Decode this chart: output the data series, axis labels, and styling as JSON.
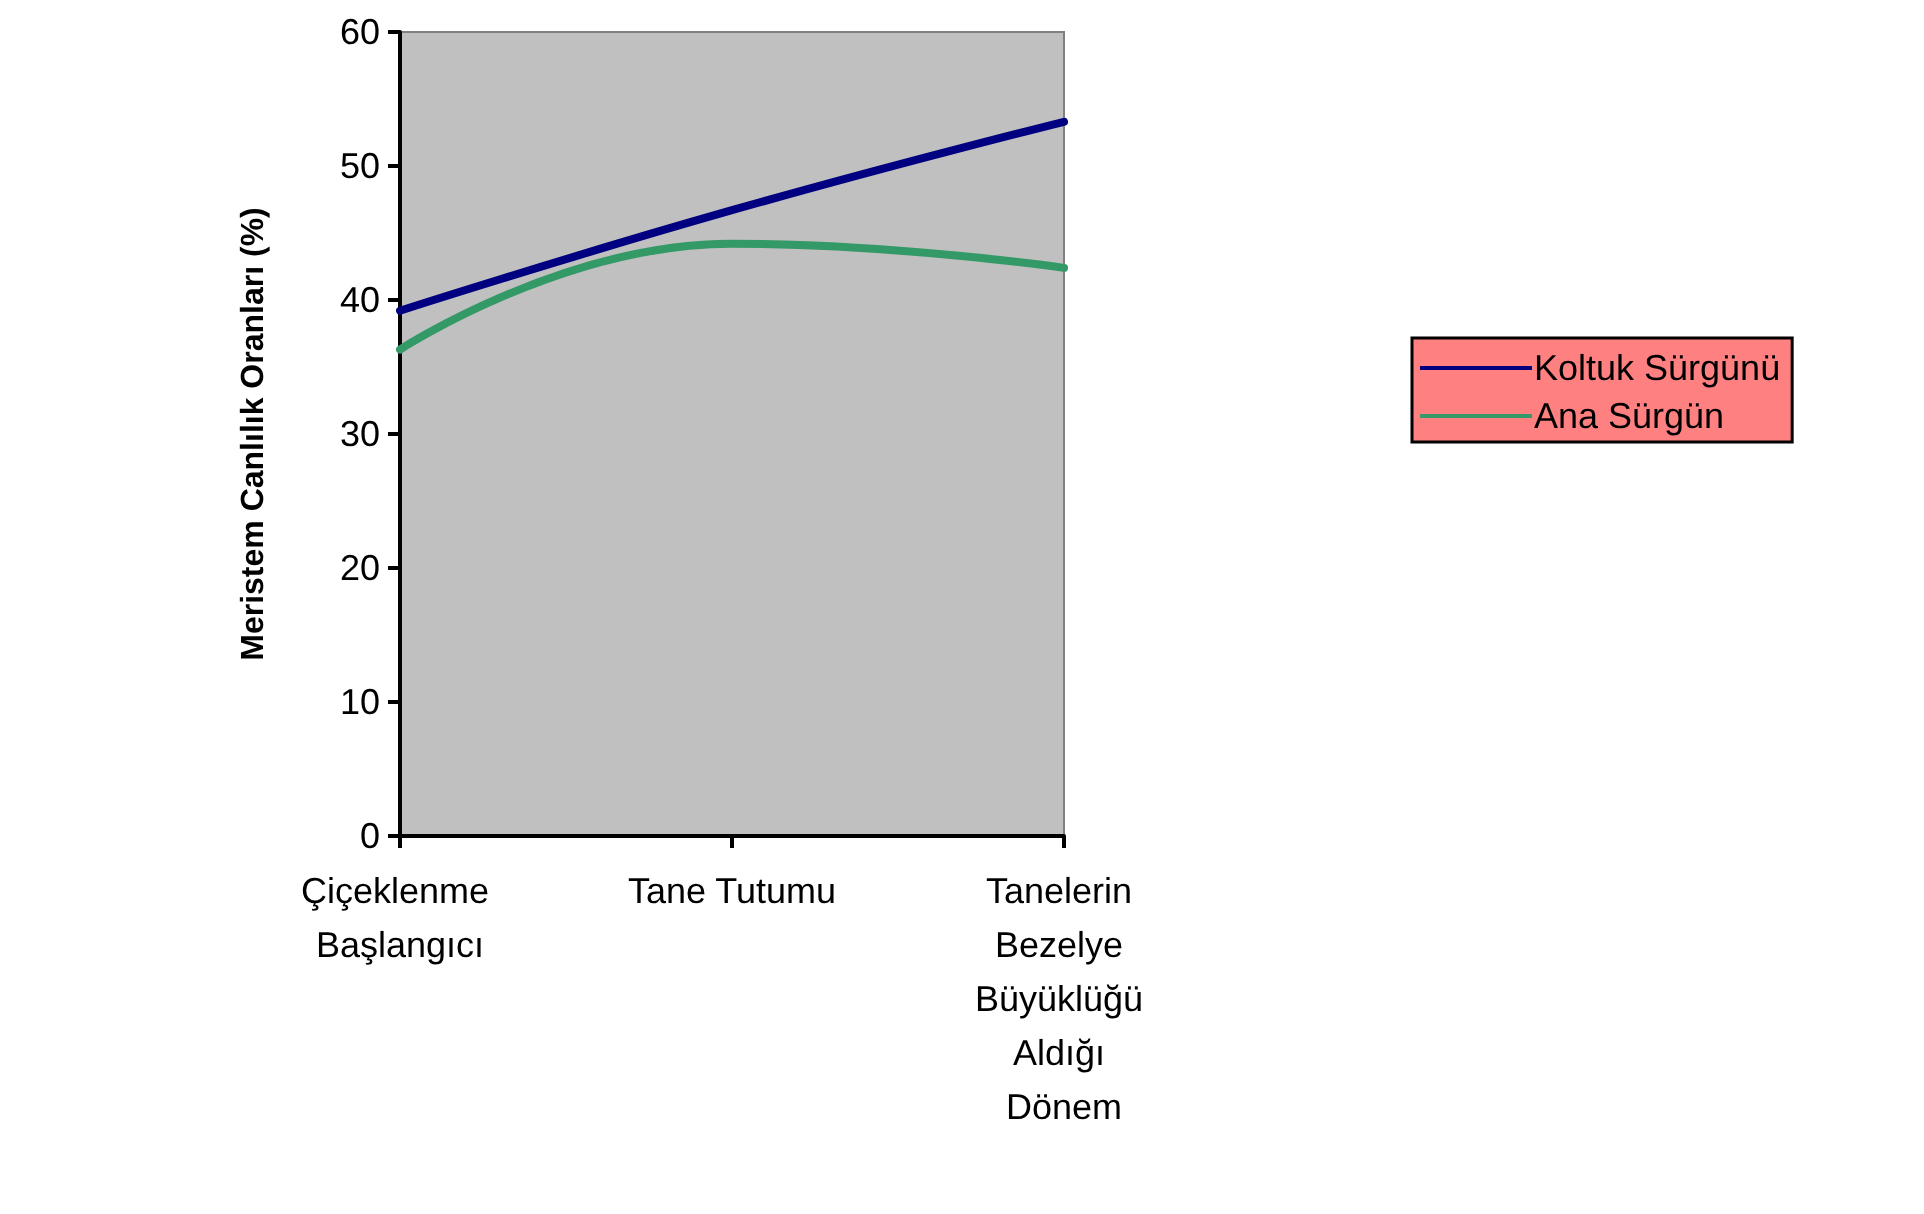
{
  "chart_data": {
    "type": "line",
    "ylabel": "Meristem Canlılık Oranları (%)",
    "categories": [
      "Çiçeklenme Başlangıcı",
      "Tane Tutumu",
      "Tanelerin Bezelye Büyüklüğü Aldığı Dönem"
    ],
    "series": [
      {
        "name": "Koltuk Sürgünü",
        "color": "#000080",
        "values": [
          39.2,
          46.7,
          53.3
        ]
      },
      {
        "name": "Ana Sürgün",
        "color": "#339966",
        "values": [
          36.3,
          44.2,
          42.4
        ]
      }
    ],
    "ylim": [
      0,
      60
    ],
    "yticks": [
      0,
      10,
      20,
      30,
      40,
      50,
      60
    ],
    "grid": false,
    "legend": "right",
    "marker": "none",
    "line_style": "solid"
  }
}
